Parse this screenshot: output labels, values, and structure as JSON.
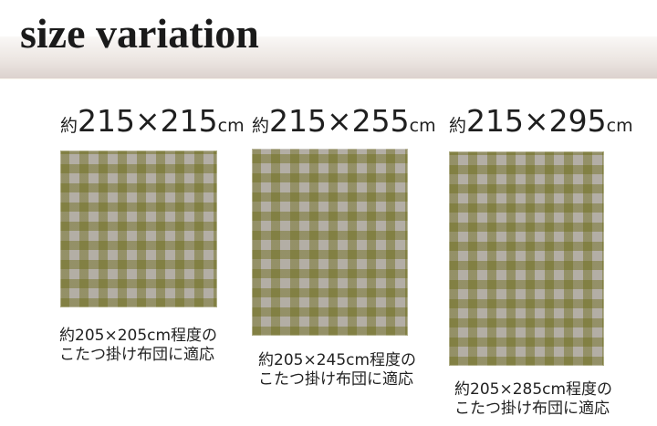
{
  "header": {
    "title": "size variation"
  },
  "variations": [
    {
      "name": "215x215",
      "size_label": {
        "prefix": "約",
        "dimensions": "215×215",
        "unit": "cm"
      },
      "caption": {
        "line1": "約205×205cm程度の",
        "line2": "こたつ掛け布団に適応"
      }
    },
    {
      "name": "215x255",
      "size_label": {
        "prefix": "約",
        "dimensions": "215×255",
        "unit": "cm"
      },
      "caption": {
        "line1": "約205×245cm程度の",
        "line2": "こたつ掛け布団に適応"
      }
    },
    {
      "name": "215x295",
      "size_label": {
        "prefix": "約",
        "dimensions": "215×295",
        "unit": "cm"
      },
      "caption": {
        "line1": "約205×285cm程度の",
        "line2": "こたつ掛け布団に適応"
      }
    }
  ],
  "colors": {
    "title_text": "#1a1a1a",
    "band_top": "#faf8f6",
    "band_bottom": "#dcd2ce",
    "label_text": "#1f1f1f",
    "caption_text": "#222222",
    "gingham_base": "#b3aea5",
    "gingham_stripe": "rgba(106,104,18,0.42)"
  }
}
